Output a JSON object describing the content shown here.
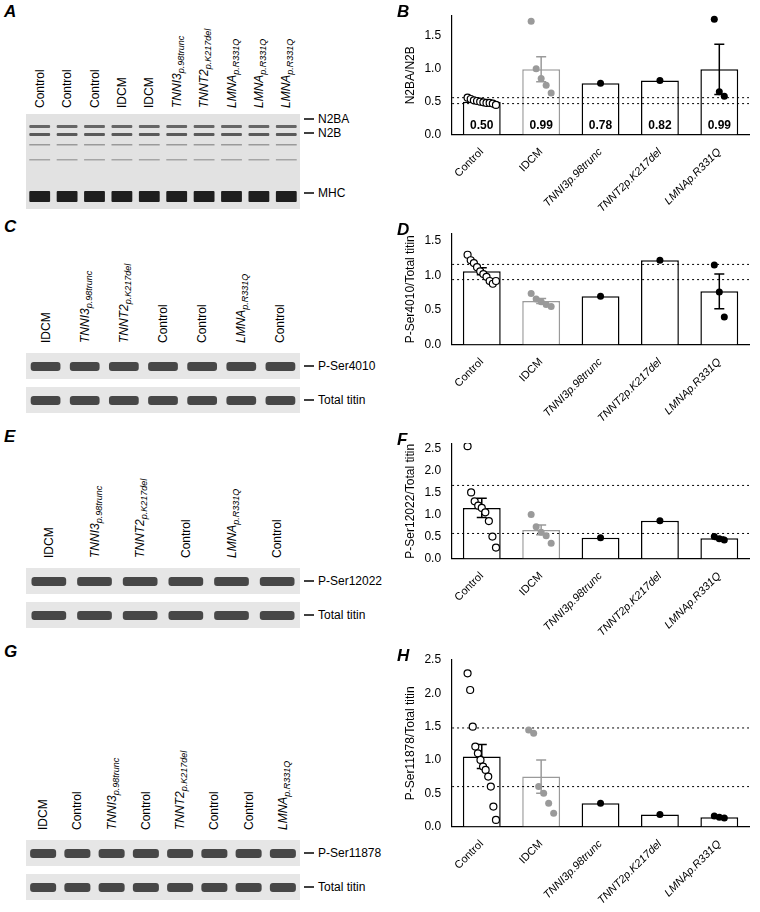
{
  "blots": [
    {
      "panel": "A",
      "lanes": [
        "Control",
        "Control",
        "Control",
        "IDCM",
        "IDCM",
        "TNNI3p.98trunc",
        "TNNT2p.K217del",
        "LMNAp.R331Q",
        "LMNAp.R331Q",
        "LMNAp.R331Q"
      ],
      "bands": [
        "N2BA",
        "N2B",
        "MHC"
      ]
    },
    {
      "panel": "C",
      "lanes": [
        "IDCM",
        "TNNI3p.98trunc",
        "TNNT2p.K217del",
        "Control",
        "Control",
        "LMNAp.R331Q",
        "Control"
      ],
      "bands": [
        "P-Ser4010",
        "Total titin"
      ]
    },
    {
      "panel": "E",
      "lanes": [
        "IDCM",
        "TNNI3p.98trunc",
        "TNNT2p.K217del",
        "Control",
        "LMNAp.R331Q",
        "Control"
      ],
      "bands": [
        "P-Ser12022",
        "Total titin"
      ]
    },
    {
      "panel": "G",
      "lanes": [
        "IDCM",
        "Control",
        "TNNI3p.98trunc",
        "Control",
        "TNNT2p.K217del",
        "Control",
        "Control",
        "LMNAp.R331Q"
      ],
      "bands": [
        "P-Ser11878",
        "Total titin"
      ]
    }
  ],
  "chart_data": [
    {
      "panel": "B",
      "type": "bar",
      "y_label": "N2BA/N2B",
      "categories": [
        "Control",
        "IDCM",
        "TNNI3p.98trunc",
        "TNNT2p.K217del",
        "LMNAp.R331Q"
      ],
      "values": [
        0.5,
        0.99,
        0.78,
        0.82,
        0.99
      ],
      "value_labels": [
        "0.50",
        "0.99",
        "0.78",
        "0.82",
        "0.99"
      ],
      "data_labels": true,
      "errors": [
        0.01,
        0.19,
        null,
        null,
        0.38
      ],
      "points": [
        [
          0.56,
          0.54,
          0.52,
          0.51,
          0.5,
          0.49,
          0.48,
          0.48,
          0.47,
          0.45
        ],
        [
          1.72,
          1.0,
          0.85,
          0.75,
          0.63
        ],
        [
          0.78
        ],
        [
          0.82
        ],
        [
          1.75,
          0.65,
          0.58
        ]
      ],
      "reference_lines": [
        0.47,
        0.56
      ],
      "colors": [
        "#000000",
        "#9a9a9a",
        "#000000",
        "#000000",
        "#000000"
      ],
      "ylim": [
        0,
        1.8
      ],
      "yticks": [
        {
          "value": 0,
          "label": "0.0"
        },
        0.5,
        {
          "value": 1,
          "label": "1.0"
        },
        1.5
      ],
      "grid": false
    },
    {
      "panel": "D",
      "type": "bar",
      "y_label": "P-Ser4010/Total titin",
      "categories": [
        "Control",
        "IDCM",
        "TNNI3p.98trunc",
        "TNNT2p.K217del",
        "LMNAp.R331Q"
      ],
      "values": [
        1.06,
        0.63,
        0.7,
        1.22,
        0.77
      ],
      "errors": [
        0.05,
        0.035,
        null,
        null,
        0.25
      ],
      "points": [
        [
          1.3,
          1.22,
          1.18,
          1.12,
          1.06,
          1.02,
          0.98,
          0.92,
          0.88,
          0.92
        ],
        [
          0.74,
          0.66,
          0.62,
          0.58,
          0.55
        ],
        [
          0.7
        ],
        [
          1.22
        ],
        [
          1.15,
          0.76,
          0.4
        ]
      ],
      "reference_lines": [
        0.94,
        1.16
      ],
      "colors": [
        "#000000",
        "#9a9a9a",
        "#000000",
        "#000000",
        "#000000"
      ],
      "ylim": [
        0,
        1.6
      ],
      "yticks": [
        {
          "value": 0,
          "label": "0.0"
        },
        0.5,
        {
          "value": 1,
          "label": "1.0"
        },
        1.5
      ],
      "grid": false
    },
    {
      "panel": "F",
      "type": "bar",
      "y_label": "P-Ser12022/Total titin",
      "categories": [
        "Control",
        "IDCM",
        "TNNI3p.98trunc",
        "TNNT2p.K217del",
        "LMNAp.R331Q"
      ],
      "values": [
        1.15,
        0.65,
        0.47,
        0.86,
        0.46
      ],
      "errors": [
        0.22,
        0.11,
        null,
        null,
        0.03
      ],
      "points": [
        [
          2.55,
          1.5,
          1.3,
          1.2,
          1.15,
          1.05,
          0.85,
          0.5,
          0.25
        ],
        [
          1.0,
          0.72,
          0.6,
          0.52,
          0.35
        ],
        [
          0.47
        ],
        [
          0.86
        ],
        [
          0.5,
          0.45,
          0.42
        ]
      ],
      "reference_lines": [
        0.57,
        1.66
      ],
      "colors": [
        "#000000",
        "#9a9a9a",
        "#000000",
        "#000000",
        "#000000"
      ],
      "ylim": [
        0,
        2.6
      ],
      "yticks": [
        {
          "value": 0,
          "label": "0.0"
        },
        0.5,
        {
          "value": 1,
          "label": "1.0"
        },
        1.5,
        {
          "value": 2,
          "label": "2.0"
        },
        2.5
      ],
      "grid": false
    },
    {
      "panel": "H",
      "type": "bar",
      "y_label": "P-Ser11878/Total titin",
      "categories": [
        "Control",
        "IDCM",
        "TNNI3p.98trunc",
        "TNNT2p.K217del",
        "LMNAp.R331Q"
      ],
      "values": [
        1.05,
        0.75,
        0.35,
        0.18,
        0.14
      ],
      "errors": [
        0.18,
        0.25,
        null,
        null,
        0.01
      ],
      "points": [
        [
          2.3,
          2.05,
          1.5,
          1.2,
          1.1,
          1.0,
          0.9,
          0.85,
          0.75,
          0.6,
          0.3,
          0.1
        ],
        [
          1.45,
          1.4,
          0.6,
          0.5,
          0.35,
          0.2
        ],
        [
          0.35
        ],
        [
          0.18
        ],
        [
          0.16,
          0.14,
          0.13
        ]
      ],
      "reference_lines": [
        0.6,
        1.48
      ],
      "colors": [
        "#000000",
        "#9a9a9a",
        "#000000",
        "#000000",
        "#000000"
      ],
      "ylim": [
        0,
        2.5
      ],
      "yticks": [
        {
          "value": 0,
          "label": "0.0"
        },
        0.5,
        {
          "value": 1,
          "label": "1.0"
        },
        1.5,
        {
          "value": 2,
          "label": "2.0"
        },
        2.5
      ],
      "grid": false
    }
  ]
}
